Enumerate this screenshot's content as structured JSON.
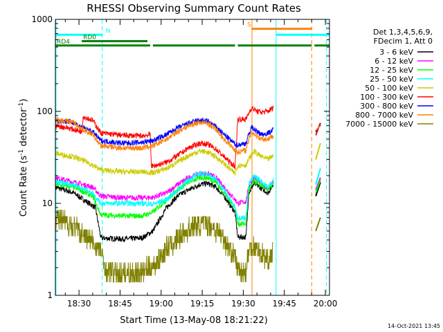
{
  "chart_data": {
    "type": "line",
    "title": "RHESSI Observing Summary Count Rates",
    "xlabel": "Start Time (13-May-08 18:21:22)",
    "ylabel_main": "Count Rate (s",
    "ylabel_sup1": "-1",
    "ylabel_mid": " detector",
    "ylabel_sup2": "-1",
    "ylabel_end": ")",
    "y_scale": "log",
    "ylim": [
      1,
      1000
    ],
    "xlim_minutes_after_1800": [
      21.37,
      121.5
    ],
    "x_ticks": [
      {
        "t": 30,
        "label": "18:30"
      },
      {
        "t": 45,
        "label": "18:45"
      },
      {
        "t": 60,
        "label": "19:00"
      },
      {
        "t": 75,
        "label": "19:15"
      },
      {
        "t": 90,
        "label": "19:30"
      },
      {
        "t": 105,
        "label": "19:45"
      },
      {
        "t": 120,
        "label": "20:00"
      }
    ],
    "y_ticks": [
      {
        "v": 1,
        "label": "1"
      },
      {
        "v": 10,
        "label": "10"
      },
      {
        "v": 100,
        "label": "100"
      },
      {
        "v": 1000,
        "label": "1000"
      }
    ],
    "legend_header": [
      "Det 1,3,4,5,6,9,",
      "FDecim 1, Att 0"
    ],
    "legend_placement": "right",
    "series": [
      {
        "name": "3 - 6 keV",
        "color": "#000000",
        "points": [
          [
            21.4,
            15
          ],
          [
            28,
            13
          ],
          [
            36,
            9
          ],
          [
            38,
            4.2
          ],
          [
            46,
            4.1
          ],
          [
            53,
            4.2
          ],
          [
            57,
            5
          ],
          [
            62,
            9
          ],
          [
            66,
            12
          ],
          [
            70,
            14
          ],
          [
            74,
            16
          ],
          [
            77,
            16.5
          ],
          [
            80,
            15
          ],
          [
            83,
            12
          ],
          [
            87,
            8
          ],
          [
            88,
            4.3
          ],
          [
            91,
            4.3
          ],
          [
            92,
            13
          ],
          [
            94,
            16.5
          ],
          [
            96,
            15
          ],
          [
            99,
            13
          ],
          [
            101,
            16
          ]
        ]
      },
      {
        "name": "6 - 12 keV",
        "color": "#ff00ff",
        "points": [
          [
            21.4,
            19
          ],
          [
            28,
            17
          ],
          [
            35,
            15
          ],
          [
            38,
            12
          ],
          [
            46,
            11.5
          ],
          [
            53,
            11.5
          ],
          [
            57,
            11.6
          ],
          [
            62,
            13
          ],
          [
            66,
            16
          ],
          [
            70,
            19
          ],
          [
            74,
            21
          ],
          [
            77,
            21
          ],
          [
            80,
            19
          ],
          [
            83,
            15
          ],
          [
            87,
            11
          ],
          [
            88,
            10
          ],
          [
            91,
            10.5
          ],
          [
            92,
            15
          ],
          [
            94,
            19
          ],
          [
            96,
            17
          ],
          [
            99,
            14
          ],
          [
            101,
            17
          ]
        ]
      },
      {
        "name": "12 - 25 keV",
        "color": "#00ff00",
        "points": [
          [
            21.4,
            16
          ],
          [
            28,
            15
          ],
          [
            35,
            12
          ],
          [
            38,
            7.5
          ],
          [
            46,
            7.3
          ],
          [
            53,
            7.3
          ],
          [
            57,
            8
          ],
          [
            62,
            11
          ],
          [
            66,
            14
          ],
          [
            70,
            17
          ],
          [
            74,
            19
          ],
          [
            77,
            19
          ],
          [
            80,
            17
          ],
          [
            83,
            13
          ],
          [
            87,
            9
          ],
          [
            88,
            6
          ],
          [
            91,
            6
          ],
          [
            92,
            14
          ],
          [
            94,
            17.5
          ],
          [
            96,
            16
          ],
          [
            99,
            14
          ],
          [
            101,
            16
          ]
        ]
      },
      {
        "name": "25 - 50 keV",
        "color": "#00ffff",
        "points": [
          [
            21.4,
            17
          ],
          [
            28,
            16
          ],
          [
            35,
            13
          ],
          [
            38,
            10
          ],
          [
            46,
            10
          ],
          [
            53,
            10
          ],
          [
            57,
            9.8
          ],
          [
            62,
            11
          ],
          [
            66,
            14
          ],
          [
            70,
            18
          ],
          [
            74,
            21
          ],
          [
            77,
            21
          ],
          [
            80,
            18
          ],
          [
            83,
            14
          ],
          [
            87,
            9
          ],
          [
            88,
            7
          ],
          [
            91,
            7
          ],
          [
            92,
            16
          ],
          [
            94,
            20
          ],
          [
            96,
            18
          ],
          [
            99,
            15
          ],
          [
            101,
            18
          ]
        ]
      },
      {
        "name": "50 - 100 keV",
        "color": "#cccc00",
        "points": [
          [
            21.4,
            35
          ],
          [
            28,
            32
          ],
          [
            33,
            28
          ],
          [
            36,
            25
          ],
          [
            38,
            23
          ],
          [
            46,
            22
          ],
          [
            53,
            22
          ],
          [
            57,
            21.5
          ],
          [
            62,
            24
          ],
          [
            66,
            28
          ],
          [
            70,
            33
          ],
          [
            74,
            37
          ],
          [
            77,
            36
          ],
          [
            80,
            32
          ],
          [
            83,
            27
          ],
          [
            87,
            21
          ],
          [
            88,
            26
          ],
          [
            91,
            26
          ],
          [
            92,
            30
          ],
          [
            94,
            37
          ],
          [
            96,
            33
          ],
          [
            99,
            30
          ],
          [
            101,
            33
          ]
        ]
      },
      {
        "name": "100 - 300 keV",
        "color": "#ff0000",
        "points": [
          [
            21.4,
            70
          ],
          [
            26,
            66
          ],
          [
            31,
            60
          ],
          [
            31.5,
            88
          ],
          [
            35,
            80
          ],
          [
            38,
            58
          ],
          [
            46,
            55
          ],
          [
            53,
            54
          ],
          [
            56,
            56
          ],
          [
            56.5,
            25
          ],
          [
            62,
            28
          ],
          [
            66,
            33
          ],
          [
            70,
            40
          ],
          [
            74,
            45
          ],
          [
            77,
            44
          ],
          [
            80,
            39
          ],
          [
            83,
            32
          ],
          [
            87,
            25
          ],
          [
            88,
            82
          ],
          [
            91,
            82
          ],
          [
            93,
            110
          ],
          [
            95,
            100
          ],
          [
            97,
            98
          ],
          [
            99,
            100
          ],
          [
            101,
            110
          ]
        ]
      },
      {
        "name": "300 - 800 keV",
        "color": "#0000ff",
        "points": [
          [
            21.4,
            80
          ],
          [
            28,
            76
          ],
          [
            31,
            67
          ],
          [
            35,
            60
          ],
          [
            38,
            48
          ],
          [
            46,
            45
          ],
          [
            53,
            46
          ],
          [
            57,
            48
          ],
          [
            62,
            56
          ],
          [
            66,
            66
          ],
          [
            70,
            74
          ],
          [
            74,
            80
          ],
          [
            77,
            78
          ],
          [
            80,
            68
          ],
          [
            83,
            56
          ],
          [
            87,
            44
          ],
          [
            88,
            43
          ],
          [
            91,
            45
          ],
          [
            93,
            68
          ],
          [
            95,
            60
          ],
          [
            97,
            56
          ],
          [
            99,
            58
          ],
          [
            101,
            63
          ]
        ]
      },
      {
        "name": "800 - 7000 keV",
        "color": "#ff8000",
        "points": [
          [
            21.4,
            82
          ],
          [
            28,
            76
          ],
          [
            31,
            65
          ],
          [
            35,
            56
          ],
          [
            38,
            42
          ],
          [
            46,
            40
          ],
          [
            53,
            40
          ],
          [
            57,
            42
          ],
          [
            62,
            50
          ],
          [
            66,
            60
          ],
          [
            70,
            70
          ],
          [
            74,
            76
          ],
          [
            77,
            74
          ],
          [
            80,
            64
          ],
          [
            83,
            50
          ],
          [
            87,
            38
          ],
          [
            88,
            36
          ],
          [
            91,
            38
          ],
          [
            93,
            60
          ],
          [
            95,
            54
          ],
          [
            97,
            50
          ],
          [
            99,
            50
          ],
          [
            101,
            55
          ]
        ]
      },
      {
        "name": "7000 - 15000 keV",
        "color": "#808000",
        "points": [
          [
            21.4,
            7
          ],
          [
            26,
            6
          ],
          [
            30,
            5
          ],
          [
            34,
            4
          ],
          [
            38,
            3
          ],
          [
            40,
            1.8
          ],
          [
            46,
            1.7
          ],
          [
            53,
            1.8
          ],
          [
            57,
            2
          ],
          [
            62,
            3.2
          ],
          [
            66,
            4.1
          ],
          [
            70,
            5.2
          ],
          [
            74,
            6
          ],
          [
            77,
            6
          ],
          [
            80,
            5.2
          ],
          [
            83,
            4
          ],
          [
            87,
            2.6
          ],
          [
            88,
            1.9
          ],
          [
            91,
            1.8
          ],
          [
            92,
            3
          ],
          [
            94,
            3.5
          ],
          [
            96,
            3
          ],
          [
            99,
            2.3
          ],
          [
            101,
            3
          ]
        ]
      }
    ],
    "state_bars": [
      {
        "label": "N",
        "color": "#00ffff",
        "y": 680,
        "segments": [
          [
            21.4,
            38.5
          ],
          [
            102,
            121.5
          ]
        ]
      },
      {
        "label": "RD0",
        "color": "#008000",
        "y": 580,
        "segments": [
          [
            31,
            55
          ]
        ]
      },
      {
        "label": "RD4",
        "color": "#008000",
        "y": 520,
        "segments": [
          [
            21.4,
            56
          ],
          [
            57,
            87
          ],
          [
            88,
            115
          ],
          [
            116,
            121.5
          ]
        ]
      },
      {
        "label": "S",
        "color": "#ff8000",
        "y": 790,
        "segments": [
          [
            93,
            115
          ]
        ]
      }
    ],
    "vertical_markers": [
      {
        "t": 21.6,
        "color": "#00ffff",
        "style": "solid"
      },
      {
        "t": 38.5,
        "color": "#00ffff",
        "style": "dashed"
      },
      {
        "t": 93.2,
        "color": "#ff8000",
        "style": "solid"
      },
      {
        "t": 102,
        "color": "#00ffff",
        "style": "solid"
      },
      {
        "t": 115,
        "color": "#ff8000",
        "style": "dashed"
      },
      {
        "t": 120.4,
        "color": "#00ffff",
        "style": "dashed"
      }
    ],
    "late_segment_t": [
      116.5,
      118.2
    ],
    "late_segment_values": [
      {
        "name": "3 - 6 keV",
        "values": [
          12,
          17
        ]
      },
      {
        "name": "6 - 12 keV",
        "values": [
          14,
          19
        ]
      },
      {
        "name": "12 - 25 keV",
        "values": [
          13,
          18
        ]
      },
      {
        "name": "25 - 50 keV",
        "values": [
          16,
          24
        ]
      },
      {
        "name": "50 - 100 keV",
        "values": [
          30,
          45
        ]
      },
      {
        "name": "100 - 300 keV",
        "values": [
          55,
          75
        ]
      },
      {
        "name": "300 - 800 keV",
        "values": [
          60,
          72
        ]
      },
      {
        "name": "800 - 7000 keV",
        "values": [
          62,
          70
        ]
      },
      {
        "name": "7000 - 15000 keV",
        "values": [
          5,
          7
        ]
      }
    ]
  },
  "footer_date": "14-Oct-2021 13:45"
}
